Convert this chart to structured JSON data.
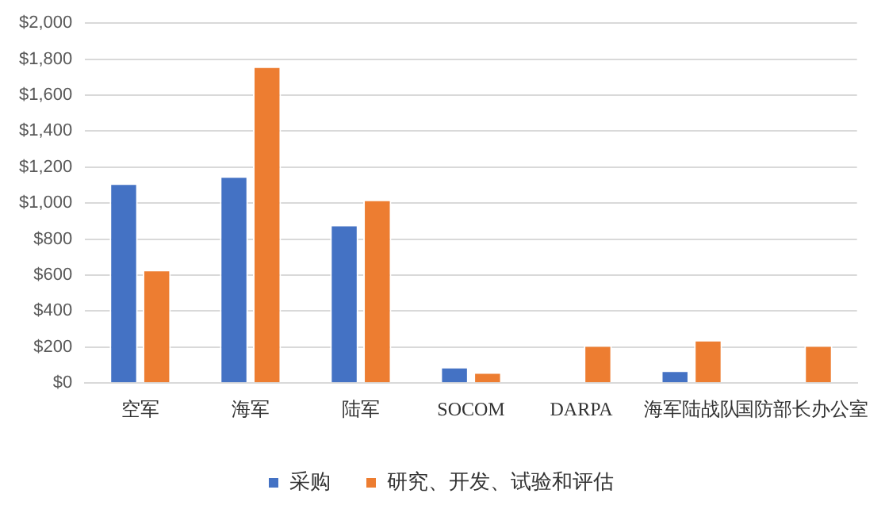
{
  "chart_data": {
    "type": "bar",
    "categories": [
      "空军",
      "海军",
      "陆军",
      "SOCOM",
      "DARPA",
      "海军陆战队",
      "国防部长办公室"
    ],
    "series": [
      {
        "name": "采购",
        "color": "#4472c4",
        "values": [
          1110,
          1150,
          880,
          90,
          null,
          70,
          null
        ]
      },
      {
        "name": "研究、开发、试验和评估",
        "color": "#ed7d31",
        "values": [
          630,
          1760,
          1020,
          60,
          210,
          240,
          210
        ]
      }
    ],
    "ylim": [
      0,
      2000
    ],
    "yticks": [
      {
        "value": 0,
        "label": "$0"
      },
      {
        "value": 200,
        "label": "$200"
      },
      {
        "value": 400,
        "label": "$400"
      },
      {
        "value": 600,
        "label": "$600"
      },
      {
        "value": 800,
        "label": "$800"
      },
      {
        "value": 1000,
        "label": "$1,000"
      },
      {
        "value": 1200,
        "label": "$1,200"
      },
      {
        "value": 1400,
        "label": "$1,400"
      },
      {
        "value": 1600,
        "label": "$1,600"
      },
      {
        "value": 1800,
        "label": "$1,800"
      },
      {
        "value": 2000,
        "label": "$2,000"
      }
    ],
    "grid": "y",
    "legend": "bottom"
  }
}
